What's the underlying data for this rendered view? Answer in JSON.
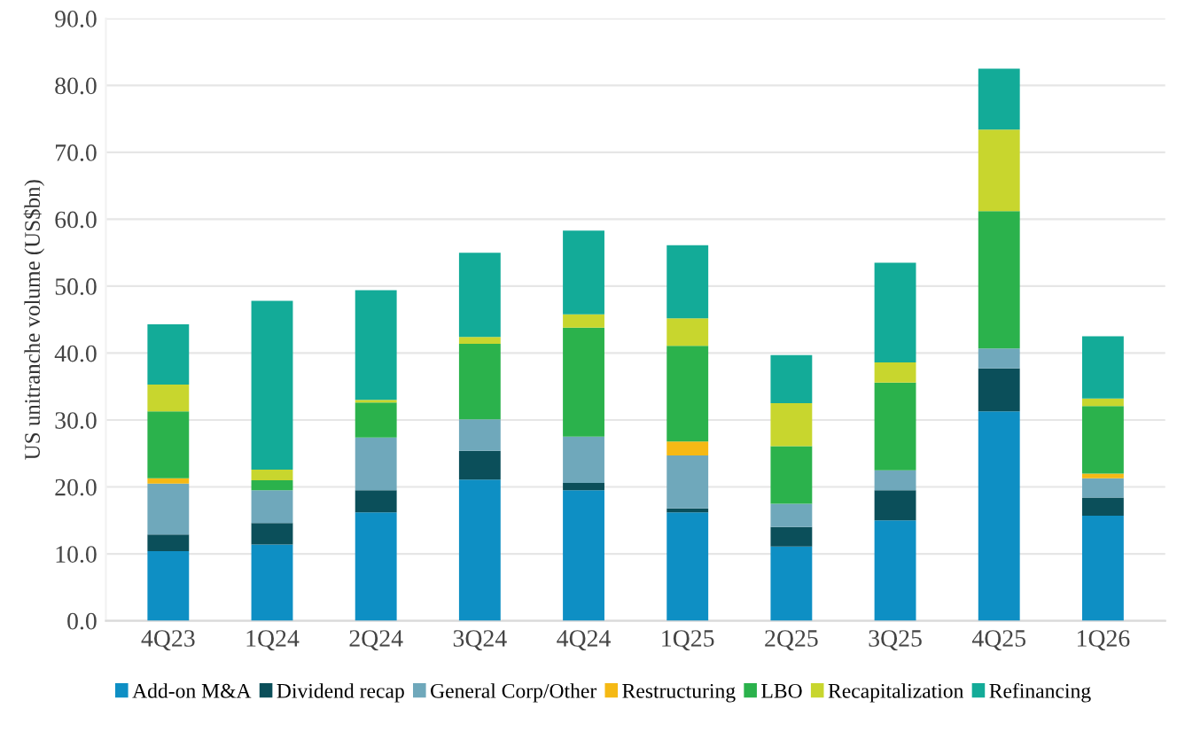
{
  "chart_data": {
    "type": "bar",
    "stacked": true,
    "ylabel": "US unitranche volume (US$bn)",
    "categories": [
      "4Q23",
      "1Q24",
      "2Q24",
      "3Q24",
      "4Q24",
      "1Q25",
      "2Q25",
      "3Q25",
      "4Q25",
      "1Q26"
    ],
    "series": [
      {
        "name": "Add-on M&A",
        "color": "#0e8fc4",
        "values": [
          10.4,
          11.4,
          16.2,
          21.1,
          19.5,
          16.2,
          11.1,
          15.0,
          31.3,
          15.7
        ]
      },
      {
        "name": "Dividend recap",
        "color": "#0b4f5a",
        "values": [
          2.5,
          3.2,
          3.3,
          4.3,
          1.1,
          0.6,
          2.9,
          4.5,
          6.4,
          2.7
        ]
      },
      {
        "name": "General Corp/Other",
        "color": "#6fa8bb",
        "values": [
          7.6,
          4.9,
          7.9,
          4.7,
          6.9,
          7.9,
          3.5,
          3.0,
          3.0,
          2.9
        ]
      },
      {
        "name": "Restructuring",
        "color": "#f5b915",
        "values": [
          0.8,
          0,
          0,
          0,
          0,
          2.1,
          0,
          0,
          0,
          0.7
        ]
      },
      {
        "name": "LBO",
        "color": "#2bb24c",
        "values": [
          10.0,
          1.5,
          5.2,
          11.3,
          16.3,
          14.3,
          8.6,
          13.1,
          20.5,
          10.1
        ]
      },
      {
        "name": "Recapitalization",
        "color": "#c8d62e",
        "values": [
          4.0,
          1.6,
          0.4,
          1.0,
          2.0,
          4.1,
          6.4,
          3.0,
          12.2,
          1.1
        ]
      },
      {
        "name": "Refinancing",
        "color": "#13ab98",
        "values": [
          9.0,
          25.2,
          16.4,
          12.6,
          12.5,
          10.9,
          7.2,
          14.9,
          9.1,
          9.3
        ]
      }
    ],
    "ylim": [
      0,
      90
    ],
    "yticks": [
      {
        "value": 0,
        "label": "0.0"
      },
      {
        "value": 10,
        "label": "10.0"
      },
      {
        "value": 20,
        "label": "20.0"
      },
      {
        "value": 30,
        "label": "30.0"
      },
      {
        "value": 40,
        "label": "40.0"
      },
      {
        "value": 50,
        "label": "50.0"
      },
      {
        "value": 60,
        "label": "60.0"
      },
      {
        "value": 70,
        "label": "70.0"
      },
      {
        "value": 80,
        "label": "80.0"
      },
      {
        "value": 90,
        "label": "90.0"
      }
    ],
    "grid": "y",
    "legend": "bottom"
  }
}
